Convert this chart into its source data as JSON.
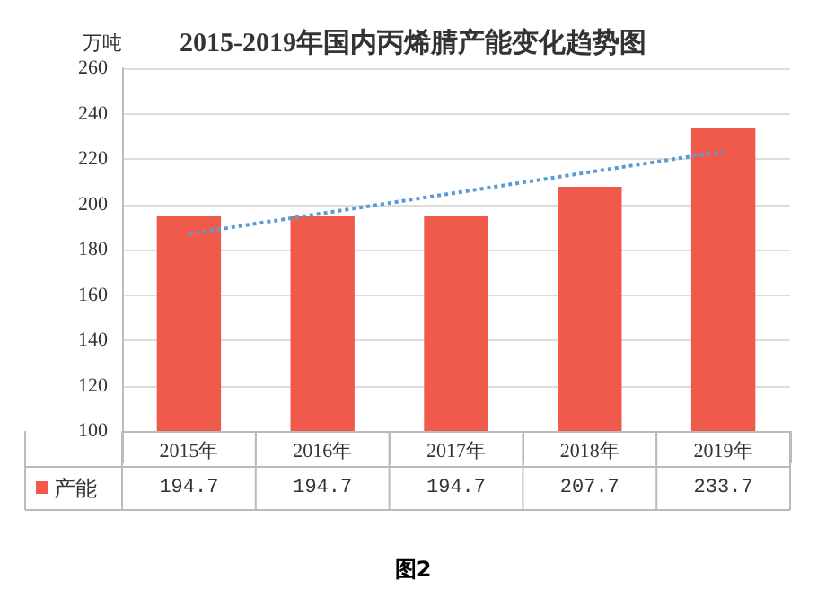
{
  "chart_data": {
    "type": "bar",
    "title": "2015-2019年国内丙烯腈产能变化趋势图",
    "ylabel": "万吨",
    "categories": [
      "2015年",
      "2016年",
      "2017年",
      "2018年",
      "2019年"
    ],
    "series": [
      {
        "name": "产能",
        "color": "#f05a4b",
        "values": [
          194.7,
          194.7,
          194.7,
          207.7,
          233.7
        ],
        "value_labels": [
          "194.7",
          "194.7",
          "194.7",
          "207.7",
          "233.7"
        ]
      },
      {
        "type": "line",
        "color": "#5b9bd5",
        "line_style": "dotted",
        "marker": "none",
        "x": [
          "2015年",
          "2019年"
        ],
        "values": [
          186.9,
          223.3
        ]
      }
    ],
    "ylim": [
      100,
      260
    ],
    "yticks": [
      100,
      120,
      140,
      160,
      180,
      200,
      220,
      240,
      260
    ],
    "grid": "y",
    "annotations": [
      "图2"
    ]
  }
}
